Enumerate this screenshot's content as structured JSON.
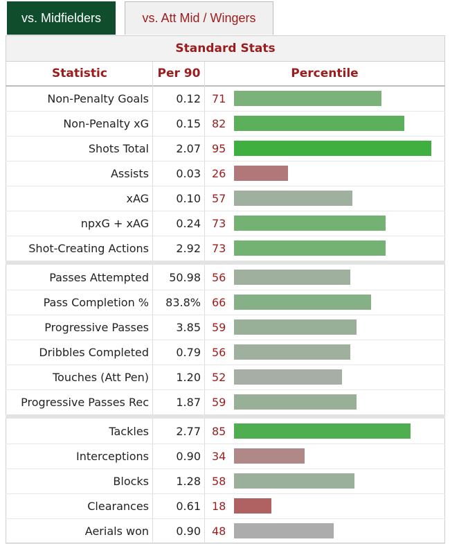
{
  "tabs": [
    {
      "label": "vs. Midfielders",
      "active": true
    },
    {
      "label": "vs. Att Mid / Wingers",
      "active": false
    }
  ],
  "table": {
    "caption": "Standard Stats",
    "headers": {
      "statistic": "Statistic",
      "per90": "Per 90",
      "percentile": "Percentile"
    },
    "groups": [
      [
        {
          "stat": "Non-Penalty Goals",
          "per90": "0.12",
          "percentile": 71,
          "color": "#7ab27a"
        },
        {
          "stat": "Non-Penalty xG",
          "per90": "0.15",
          "percentile": 82,
          "color": "#5cb05c"
        },
        {
          "stat": "Shots Total",
          "per90": "2.07",
          "percentile": 95,
          "color": "#3faf3f"
        },
        {
          "stat": "Assists",
          "per90": "0.03",
          "percentile": 26,
          "color": "#b07878"
        },
        {
          "stat": "xAG",
          "per90": "0.10",
          "percentile": 57,
          "color": "#9fb09f"
        },
        {
          "stat": "npxG + xAG",
          "per90": "0.24",
          "percentile": 73,
          "color": "#74b274"
        },
        {
          "stat": "Shot-Creating Actions",
          "per90": "2.92",
          "percentile": 73,
          "color": "#74b274"
        }
      ],
      [
        {
          "stat": "Passes Attempted",
          "per90": "50.98",
          "percentile": 56,
          "color": "#9fb09f"
        },
        {
          "stat": "Pass Completion %",
          "per90": "83.8%",
          "percentile": 66,
          "color": "#86b086"
        },
        {
          "stat": "Progressive Passes",
          "per90": "3.85",
          "percentile": 59,
          "color": "#97b097"
        },
        {
          "stat": "Dribbles Completed",
          "per90": "0.79",
          "percentile": 56,
          "color": "#9fb09f"
        },
        {
          "stat": "Touches (Att Pen)",
          "per90": "1.20",
          "percentile": 52,
          "color": "#a6aea6"
        },
        {
          "stat": "Progressive Passes Rec",
          "per90": "1.87",
          "percentile": 59,
          "color": "#97b097"
        }
      ],
      [
        {
          "stat": "Tackles",
          "per90": "2.77",
          "percentile": 85,
          "color": "#4fae4f"
        },
        {
          "stat": "Interceptions",
          "per90": "0.90",
          "percentile": 34,
          "color": "#b08888"
        },
        {
          "stat": "Blocks",
          "per90": "1.28",
          "percentile": 58,
          "color": "#9ab09a"
        },
        {
          "stat": "Clearances",
          "per90": "0.61",
          "percentile": 18,
          "color": "#b06262"
        },
        {
          "stat": "Aerials won",
          "per90": "0.90",
          "percentile": 48,
          "color": "#acacac"
        }
      ]
    ]
  }
}
